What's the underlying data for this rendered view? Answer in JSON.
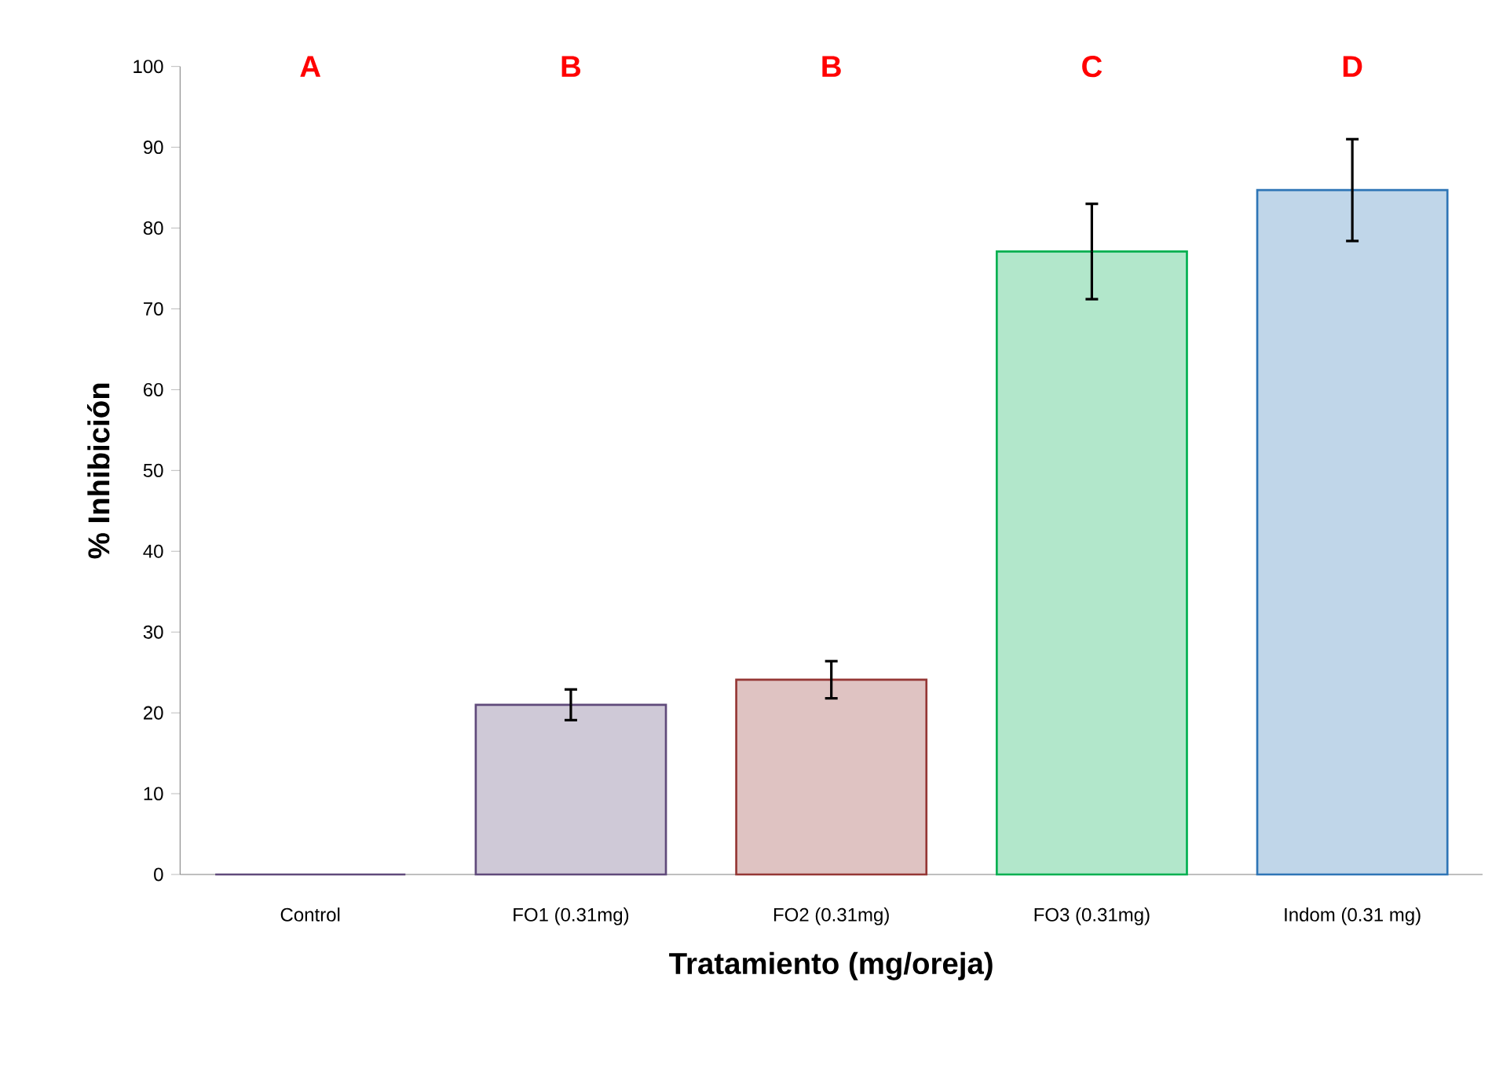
{
  "chart_data": {
    "type": "bar",
    "xlabel": "Tratamiento (mg/oreja)",
    "ylabel": "% Inhibición",
    "categories": [
      "Control",
      "FO1 (0.31mg)",
      "FO2 (0.31mg)",
      "FO3 (0.31mg)",
      "Indom (0.31 mg)"
    ],
    "values": [
      0,
      21,
      24.1,
      77.1,
      84.7
    ],
    "errors": [
      null,
      1.9,
      2.3,
      5.9,
      6.3
    ],
    "colors": [
      "#604a7b",
      "#604a7b",
      "#953735",
      "#00b050",
      "#2e75b6"
    ],
    "ylim": [
      0,
      100
    ],
    "yticks": [
      0,
      10,
      20,
      30,
      40,
      50,
      60,
      70,
      80,
      90,
      100
    ],
    "annotations": [
      "A",
      "B",
      "B",
      "C",
      "D"
    ]
  }
}
